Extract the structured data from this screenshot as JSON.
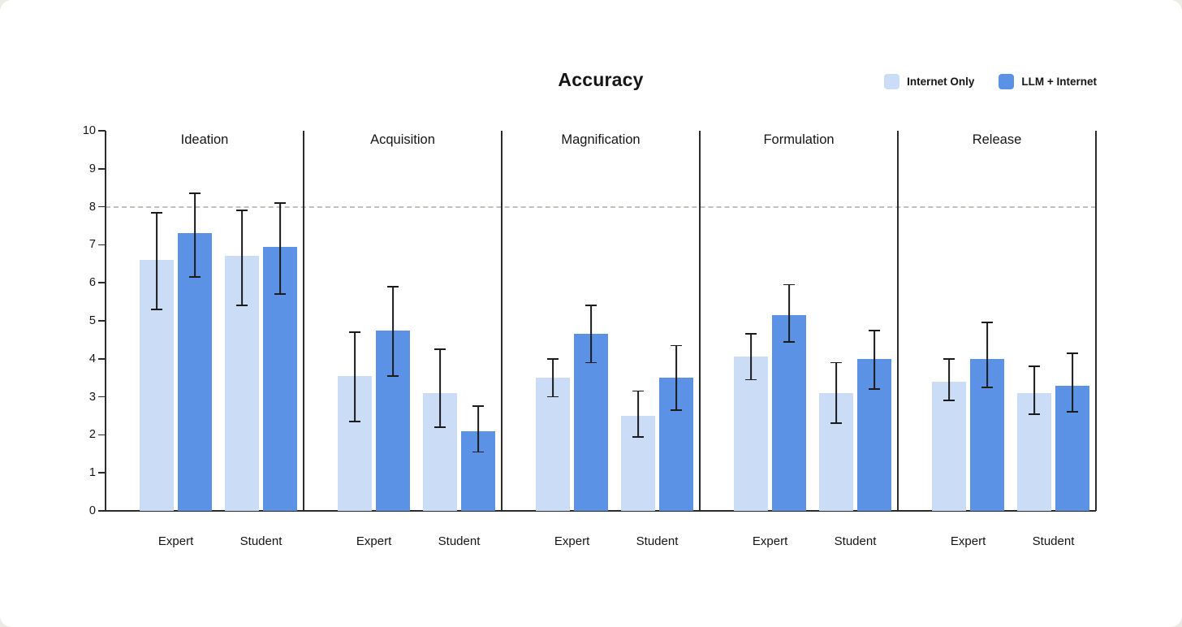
{
  "title": "Accuracy",
  "chart_data": {
    "type": "bar",
    "title": "Accuracy",
    "xlabel": "",
    "ylabel": "",
    "ylim": [
      0,
      10
    ],
    "yticks": [
      0,
      1,
      2,
      3,
      4,
      5,
      6,
      7,
      8,
      9,
      10
    ],
    "reference_line": 8,
    "grid": false,
    "legend_position": "top-right",
    "error_bars": true,
    "series": [
      {
        "name": "Internet Only",
        "color": "#cbdcf7"
      },
      {
        "name": "LLM + Internet",
        "color": "#5b92e6"
      }
    ],
    "group_labels": [
      "Expert",
      "Student"
    ],
    "panels": [
      {
        "name": "Ideation",
        "groups": [
          {
            "label": "Expert",
            "bars": [
              {
                "series": "Internet Only",
                "value": 6.6,
                "err_low": 5.3,
                "err_high": 7.85
              },
              {
                "series": "LLM + Internet",
                "value": 7.3,
                "err_low": 6.15,
                "err_high": 8.35
              }
            ]
          },
          {
            "label": "Student",
            "bars": [
              {
                "series": "Internet Only",
                "value": 6.7,
                "err_low": 5.4,
                "err_high": 7.9
              },
              {
                "series": "LLM + Internet",
                "value": 6.95,
                "err_low": 5.7,
                "err_high": 8.1
              }
            ]
          }
        ]
      },
      {
        "name": "Acquisition",
        "groups": [
          {
            "label": "Expert",
            "bars": [
              {
                "series": "Internet Only",
                "value": 3.55,
                "err_low": 2.35,
                "err_high": 4.7
              },
              {
                "series": "LLM + Internet",
                "value": 4.75,
                "err_low": 3.55,
                "err_high": 5.9
              }
            ]
          },
          {
            "label": "Student",
            "bars": [
              {
                "series": "Internet Only",
                "value": 3.1,
                "err_low": 2.2,
                "err_high": 4.25
              },
              {
                "series": "LLM + Internet",
                "value": 2.1,
                "err_low": 1.55,
                "err_high": 2.75
              }
            ]
          }
        ]
      },
      {
        "name": "Magnification",
        "groups": [
          {
            "label": "Expert",
            "bars": [
              {
                "series": "Internet Only",
                "value": 3.5,
                "err_low": 3.0,
                "err_high": 4.0
              },
              {
                "series": "LLM + Internet",
                "value": 4.65,
                "err_low": 3.9,
                "err_high": 5.4
              }
            ]
          },
          {
            "label": "Student",
            "bars": [
              {
                "series": "Internet Only",
                "value": 2.5,
                "err_low": 1.95,
                "err_high": 3.15
              },
              {
                "series": "LLM + Internet",
                "value": 3.5,
                "err_low": 2.65,
                "err_high": 4.35
              }
            ]
          }
        ]
      },
      {
        "name": "Formulation",
        "groups": [
          {
            "label": "Expert",
            "bars": [
              {
                "series": "Internet Only",
                "value": 4.05,
                "err_low": 3.45,
                "err_high": 4.65
              },
              {
                "series": "LLM + Internet",
                "value": 5.15,
                "err_low": 4.45,
                "err_high": 5.95
              }
            ]
          },
          {
            "label": "Student",
            "bars": [
              {
                "series": "Internet Only",
                "value": 3.1,
                "err_low": 2.3,
                "err_high": 3.9
              },
              {
                "series": "LLM + Internet",
                "value": 4.0,
                "err_low": 3.2,
                "err_high": 4.75
              }
            ]
          }
        ]
      },
      {
        "name": "Release",
        "groups": [
          {
            "label": "Expert",
            "bars": [
              {
                "series": "Internet Only",
                "value": 3.4,
                "err_low": 2.9,
                "err_high": 4.0
              },
              {
                "series": "LLM + Internet",
                "value": 4.0,
                "err_low": 3.25,
                "err_high": 4.95
              }
            ]
          },
          {
            "label": "Student",
            "bars": [
              {
                "series": "Internet Only",
                "value": 3.1,
                "err_low": 2.55,
                "err_high": 3.8
              },
              {
                "series": "LLM + Internet",
                "value": 3.3,
                "err_low": 2.6,
                "err_high": 4.15
              }
            ]
          }
        ]
      }
    ]
  }
}
